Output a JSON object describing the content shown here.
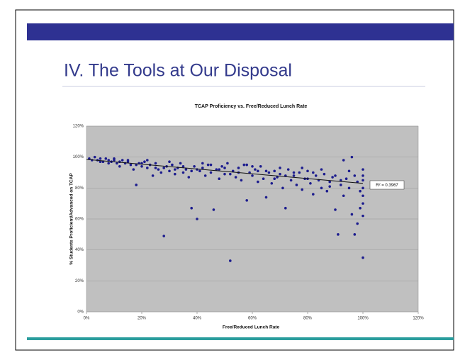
{
  "slide": {
    "title": "IV. The Tools at Our Disposal"
  },
  "chart_data": {
    "type": "scatter",
    "title": "TCAP Proficiency vs. Free/Reduced Lunch Rate",
    "x_label": "Free/Reduced Lunch Rate",
    "y_label": "% Students Proficient/Advanced on TCAP",
    "annotation": "R² = 0.3967",
    "color": "#1c1c8e",
    "grid": true,
    "xlim": [
      0,
      120
    ],
    "ylim": [
      0,
      120
    ],
    "xticks": [
      {
        "value": 0,
        "label": "0%"
      },
      {
        "value": 20,
        "label": "20%"
      },
      {
        "value": 40,
        "label": "40%"
      },
      {
        "value": 60,
        "label": "60%"
      },
      {
        "value": 80,
        "label": "80%"
      },
      {
        "value": 100,
        "label": "100%"
      },
      {
        "value": 120,
        "label": "120%"
      }
    ],
    "yticks": [
      {
        "value": 0,
        "label": "0%"
      },
      {
        "value": 20,
        "label": "20%"
      },
      {
        "value": 40,
        "label": "40%"
      },
      {
        "value": 60,
        "label": "60%"
      },
      {
        "value": 80,
        "label": "80%"
      },
      {
        "value": 100,
        "label": "100%"
      },
      {
        "value": 120,
        "label": "120%"
      }
    ],
    "x": [
      1,
      2,
      3,
      4,
      5,
      6,
      7,
      8,
      9,
      10,
      11,
      12,
      13,
      14,
      15,
      16,
      17,
      18,
      19,
      20,
      21,
      22,
      23,
      24,
      25,
      26,
      27,
      28,
      29,
      30,
      31,
      32,
      33,
      34,
      35,
      36,
      37,
      38,
      39,
      40,
      41,
      42,
      43,
      44,
      45,
      46,
      47,
      48,
      49,
      50,
      51,
      52,
      53,
      54,
      55,
      56,
      57,
      58,
      59,
      60,
      61,
      62,
      63,
      64,
      65,
      66,
      67,
      68,
      69,
      70,
      71,
      72,
      73,
      74,
      75,
      76,
      77,
      78,
      79,
      80,
      81,
      82,
      83,
      84,
      85,
      86,
      87,
      88,
      89,
      90,
      91,
      92,
      93,
      94,
      95,
      96,
      97,
      98,
      99,
      100,
      100,
      100,
      100,
      100,
      100,
      100,
      100,
      99,
      98,
      97,
      95,
      93,
      5,
      10,
      15,
      20,
      25,
      30,
      35,
      40,
      45,
      50,
      55,
      60,
      65,
      70,
      75,
      80,
      85,
      90,
      12,
      22,
      32,
      42,
      52,
      62,
      72,
      82,
      92,
      8,
      18,
      28,
      38,
      48,
      58,
      68,
      78,
      88,
      96
    ],
    "values": [
      99,
      98,
      100,
      98,
      99,
      97,
      99,
      98,
      97,
      98,
      96,
      97,
      98,
      96,
      97,
      95,
      92,
      82,
      96,
      94,
      97,
      93,
      95,
      88,
      96,
      92,
      90,
      49,
      94,
      91,
      95,
      89,
      93,
      96,
      90,
      92,
      87,
      67,
      94,
      60,
      91,
      93,
      88,
      95,
      90,
      66,
      92,
      86,
      94,
      89,
      96,
      33,
      91,
      87,
      93,
      85,
      95,
      72,
      90,
      88,
      92,
      84,
      94,
      86,
      74,
      90,
      83,
      91,
      87,
      89,
      80,
      67,
      92,
      85,
      88,
      82,
      90,
      79,
      86,
      91,
      83,
      76,
      88,
      85,
      80,
      89,
      78,
      84,
      87,
      66,
      50,
      82,
      75,
      86,
      80,
      63,
      50,
      57,
      67,
      35,
      62,
      70,
      75,
      80,
      85,
      88,
      92,
      78,
      84,
      88,
      91,
      98,
      97,
      99,
      98,
      96,
      93,
      97,
      94,
      92,
      95,
      93,
      90,
      94,
      91,
      93,
      90,
      86,
      92,
      88,
      94,
      98,
      92,
      96,
      89,
      91,
      88,
      90,
      85,
      96,
      95,
      93,
      91,
      92,
      95,
      86,
      93,
      81,
      100
    ],
    "trendline": {
      "x": [
        0,
        100
      ],
      "values": [
        98.5,
        83
      ]
    }
  }
}
